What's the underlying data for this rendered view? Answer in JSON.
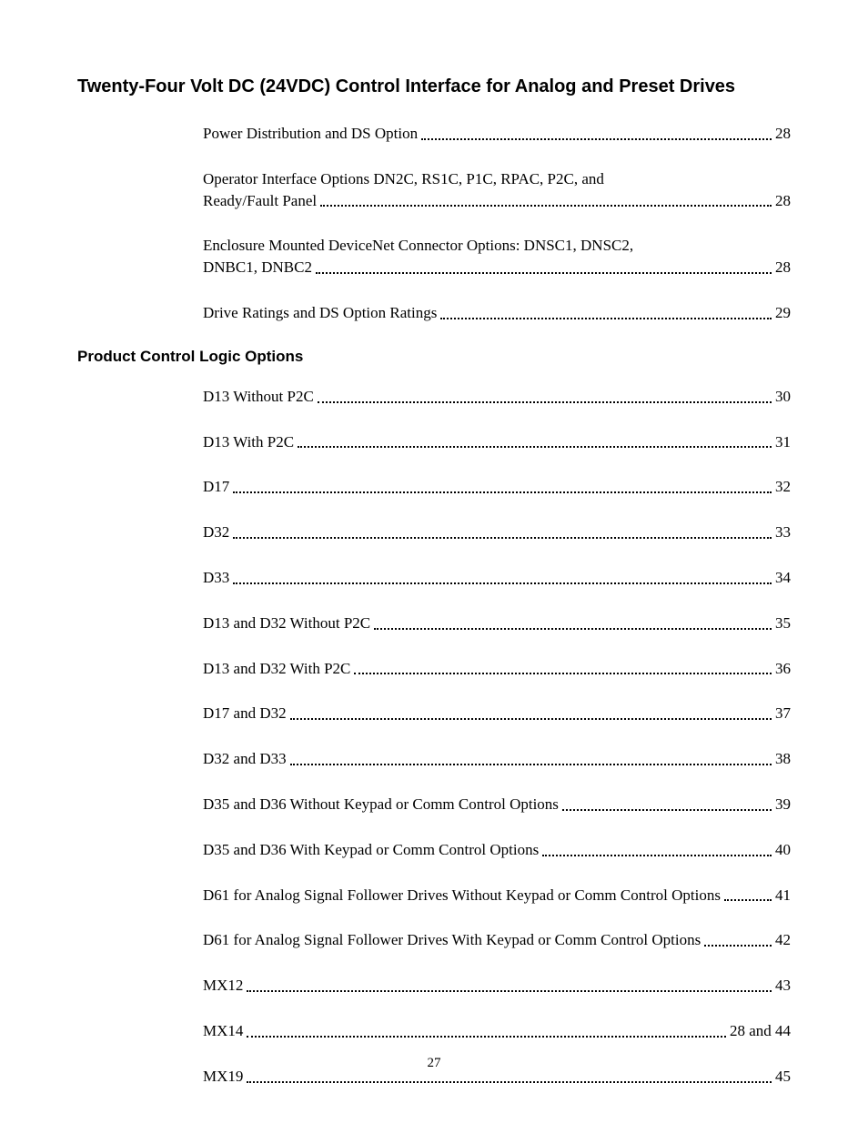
{
  "title": "Twenty-Four Volt DC (24VDC) Control Interface for Analog and Preset Drives",
  "top_entries": [
    {
      "label": "Power Distribution and DS Option",
      "page": "28",
      "multiline": false
    },
    {
      "label_line1": "Operator Interface Options DN2C, RS1C, P1C, RPAC, P2C, and",
      "label_line2": "Ready/Fault Panel",
      "page": "28",
      "multiline": true
    },
    {
      "label_line1": "Enclosure Mounted DeviceNet Connector Options: DNSC1, DNSC2,",
      "label_line2": "DNBC1, DNBC2",
      "page": "28",
      "multiline": true
    },
    {
      "label": "Drive Ratings and DS Option Ratings",
      "page": "29",
      "multiline": false
    }
  ],
  "section_heading": "Product Control Logic Options",
  "logic_entries": [
    {
      "label": "D13 Without P2C",
      "page": "30"
    },
    {
      "label": "D13 With P2C",
      "page": "31"
    },
    {
      "label": "D17",
      "page": "32"
    },
    {
      "label": "D32",
      "page": "33"
    },
    {
      "label": "D33",
      "page": "34"
    },
    {
      "label": "D13 and D32 Without P2C",
      "page": "35"
    },
    {
      "label": "D13 and D32 With P2C",
      "page": "36"
    },
    {
      "label": "D17 and D32",
      "page": "37"
    },
    {
      "label": "D32 and D33",
      "page": "38"
    },
    {
      "label": "D35 and D36 Without Keypad or Comm Control Options",
      "page": "39"
    },
    {
      "label": "D35 and D36 With Keypad or Comm Control Options",
      "page": "40"
    },
    {
      "label": "D61 for Analog Signal Follower Drives Without Keypad or Comm Control Options",
      "page": "41"
    },
    {
      "label": "D61 for Analog Signal Follower Drives With Keypad or Comm Control Options",
      "page": "42"
    },
    {
      "label": "MX12",
      "page": "43"
    },
    {
      "label": "MX14",
      "page": "28 and 44"
    },
    {
      "label": "MX19",
      "page": "45"
    }
  ],
  "page_number": "27"
}
